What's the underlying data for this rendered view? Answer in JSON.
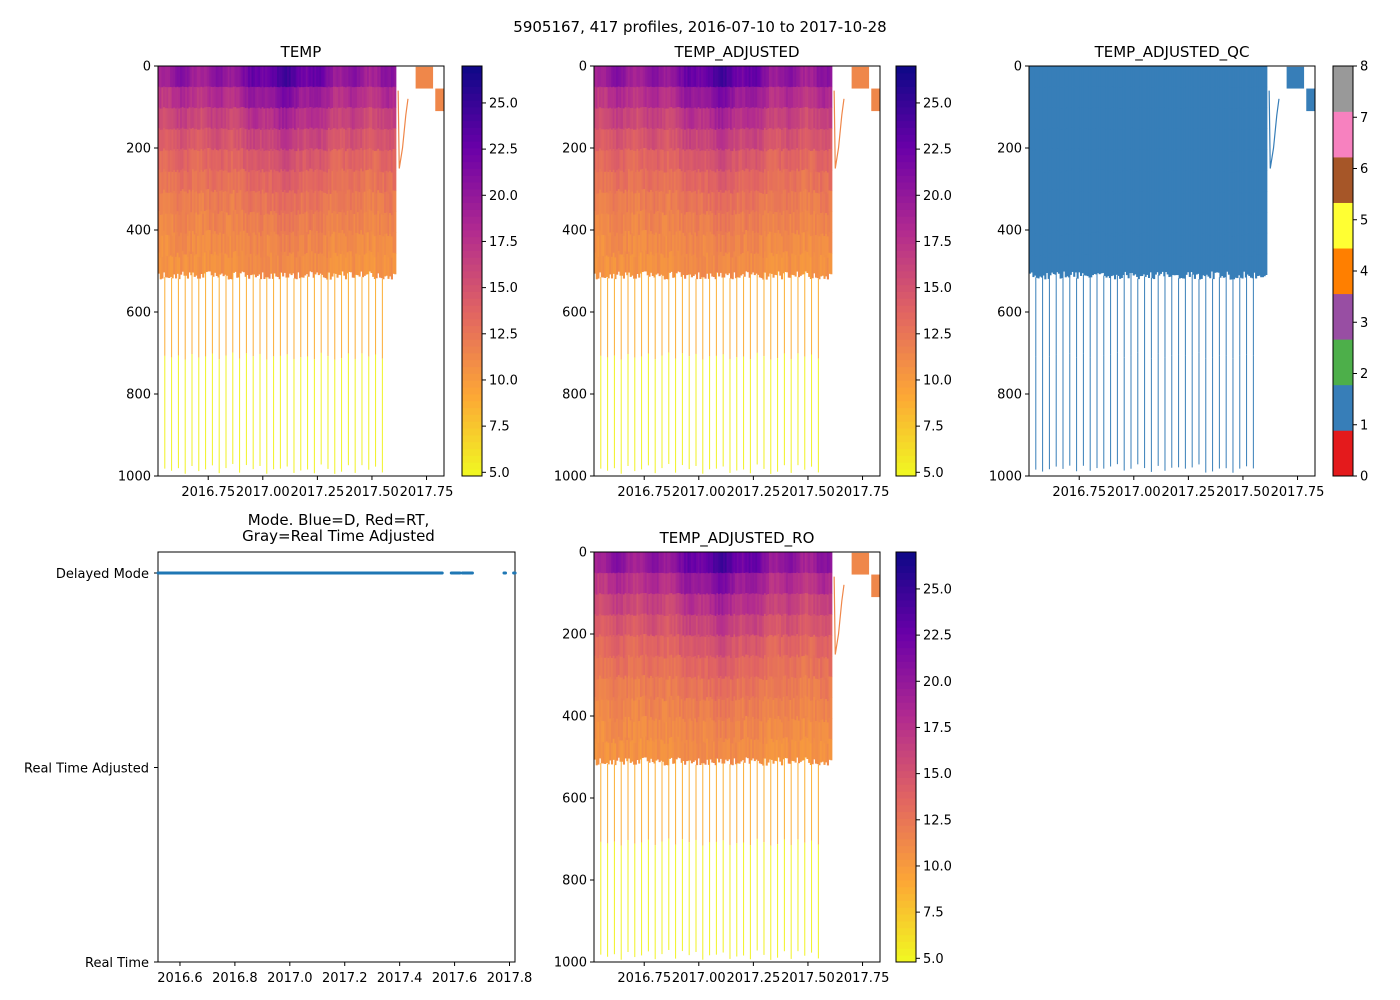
{
  "figure": {
    "title": "5905167, 417 profiles, 2016-07-10 to 2017-10-28"
  },
  "colors": {
    "qc_palette": [
      "#e41a1c",
      "#377eb8",
      "#4daf4a",
      "#984ea3",
      "#ff7f00",
      "#ffff33",
      "#a65628",
      "#f781bf",
      "#999999"
    ],
    "delayed_mode": "#1f77b4",
    "plasma_stops": [
      "#0d0887",
      "#6a00a8",
      "#b12a90",
      "#e16462",
      "#fca636",
      "#f0f921"
    ]
  },
  "chart_data": [
    {
      "id": "temp",
      "type": "heatmap",
      "title": "TEMP",
      "xlabel": "",
      "ylabel": "",
      "xlim": [
        2016.52,
        2017.83
      ],
      "ylim": [
        1000,
        0
      ],
      "x_ticks": [
        "2016.75",
        "2017.00",
        "2017.25",
        "2017.50",
        "2017.75"
      ],
      "y_ticks": [
        "0",
        "200",
        "400",
        "600",
        "800",
        "1000"
      ],
      "colorbar": {
        "range": [
          4.8,
          27
        ],
        "ticks": [
          "5.0",
          "7.5",
          "10.0",
          "12.5",
          "15.0",
          "17.5",
          "20.0",
          "22.5",
          "25.0"
        ]
      },
      "description": "Temperature vs. pressure for each profile; ~25 C near surface warming in early 2017, ~9 C at 500 dbar; dense profiles to ~510 dbar through 2017.6, with deep casts to ~1000 dbar every few cycles."
    },
    {
      "id": "temp_adjusted",
      "type": "heatmap",
      "title": "TEMP_ADJUSTED",
      "xlabel": "",
      "ylabel": "",
      "xlim": [
        2016.52,
        2017.83
      ],
      "ylim": [
        1000,
        0
      ],
      "x_ticks": [
        "2016.75",
        "2017.00",
        "2017.25",
        "2017.50",
        "2017.75"
      ],
      "y_ticks": [
        "0",
        "200",
        "400",
        "600",
        "800",
        "1000"
      ],
      "colorbar": {
        "range": [
          4.8,
          27
        ],
        "ticks": [
          "5.0",
          "7.5",
          "10.0",
          "12.5",
          "15.0",
          "17.5",
          "20.0",
          "22.5",
          "25.0"
        ]
      }
    },
    {
      "id": "temp_adjusted_qc",
      "type": "heatmap",
      "title": "TEMP_ADJUSTED_QC",
      "xlabel": "",
      "ylabel": "",
      "xlim": [
        2016.52,
        2017.83
      ],
      "ylim": [
        1000,
        0
      ],
      "x_ticks": [
        "2016.75",
        "2017.00",
        "2017.25",
        "2017.50",
        "2017.75"
      ],
      "y_ticks": [
        "0",
        "200",
        "400",
        "600",
        "800",
        "1000"
      ],
      "colorbar": {
        "range": [
          0,
          8
        ],
        "ticks": [
          "0",
          "1",
          "2",
          "3",
          "4",
          "5",
          "6",
          "7",
          "8"
        ]
      },
      "dominant_flag": 1
    },
    {
      "id": "mode",
      "type": "scatter",
      "title": "Mode. Blue=D, Red=RT,\nGray=Real Time Adjusted",
      "title_lines": [
        "Mode. Blue=D, Red=RT,",
        "Gray=Real Time Adjusted"
      ],
      "xlabel": "",
      "ylabel": "",
      "xlim": [
        2016.52,
        2017.82
      ],
      "categories": [
        "Real Time",
        "Real Time Adjusted",
        "Delayed Mode"
      ],
      "x_ticks": [
        "2016.6",
        "2016.8",
        "2017.0",
        "2017.2",
        "2017.4",
        "2017.6",
        "2017.8"
      ],
      "series": [
        {
          "name": "Delayed Mode",
          "category": "Delayed Mode",
          "segments": [
            [
              2016.52,
              2017.555
            ],
            [
              2017.588,
              2017.62
            ],
            [
              2017.628,
              2017.665
            ],
            [
              2017.78,
              2017.785
            ],
            [
              2017.815,
              2017.82
            ]
          ]
        }
      ]
    },
    {
      "id": "temp_adjusted_ro",
      "type": "heatmap",
      "title": "TEMP_ADJUSTED_RO",
      "xlabel": "",
      "ylabel": "",
      "xlim": [
        2016.52,
        2017.83
      ],
      "ylim": [
        1000,
        0
      ],
      "x_ticks": [
        "2016.75",
        "2017.00",
        "2017.25",
        "2017.50",
        "2017.75"
      ],
      "y_ticks": [
        "0",
        "200",
        "400",
        "600",
        "800",
        "1000"
      ],
      "colorbar": {
        "range": [
          4.8,
          27
        ],
        "ticks": [
          "5.0",
          "7.5",
          "10.0",
          "12.5",
          "15.0",
          "17.5",
          "20.0",
          "22.5",
          "25.0"
        ]
      }
    }
  ]
}
